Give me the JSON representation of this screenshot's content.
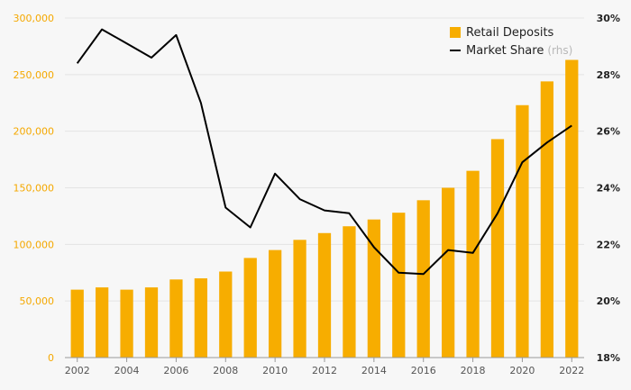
{
  "chart_data": {
    "type": "bar",
    "x": [
      "2002",
      "2003",
      "2004",
      "2005",
      "2006",
      "2007",
      "2008",
      "2009",
      "2010",
      "2011",
      "2012",
      "2013",
      "2014",
      "2015",
      "2016",
      "2017",
      "2018",
      "2019",
      "2020",
      "2021",
      "2022"
    ],
    "x_tick_labels": [
      "2002",
      "2004",
      "2006",
      "2008",
      "2010",
      "2012",
      "2014",
      "2016",
      "2018",
      "2020",
      "2022"
    ],
    "series": [
      {
        "name": "Retail Deposits",
        "type": "bar",
        "axis": "left",
        "color": "#f7ad00",
        "values": [
          60000,
          62000,
          60000,
          62000,
          69000,
          70000,
          76000,
          88000,
          95000,
          104000,
          110000,
          116000,
          122000,
          128000,
          139000,
          150000,
          165000,
          193000,
          223000,
          244000,
          263000
        ]
      },
      {
        "name": "Market Share",
        "name_suffix": "(rhs)",
        "type": "line",
        "axis": "right",
        "color": "#000000",
        "values": [
          28.4,
          29.6,
          29.1,
          28.6,
          29.4,
          27.0,
          23.3,
          22.6,
          24.5,
          23.6,
          23.2,
          23.1,
          21.9,
          21.0,
          20.95,
          21.8,
          21.7,
          23.1,
          24.9,
          25.6,
          26.2
        ]
      }
    ],
    "y_left": {
      "min": 0,
      "max": 300000,
      "ticks": [
        "0",
        "50,000",
        "100,000",
        "150,000",
        "200,000",
        "250,000",
        "300,000"
      ]
    },
    "y_right": {
      "min": 18,
      "max": 30,
      "ticks": [
        "18%",
        "20%",
        "22%",
        "24%",
        "26%",
        "28%",
        "30%"
      ]
    },
    "grid": true,
    "legend_position": "top-right"
  }
}
